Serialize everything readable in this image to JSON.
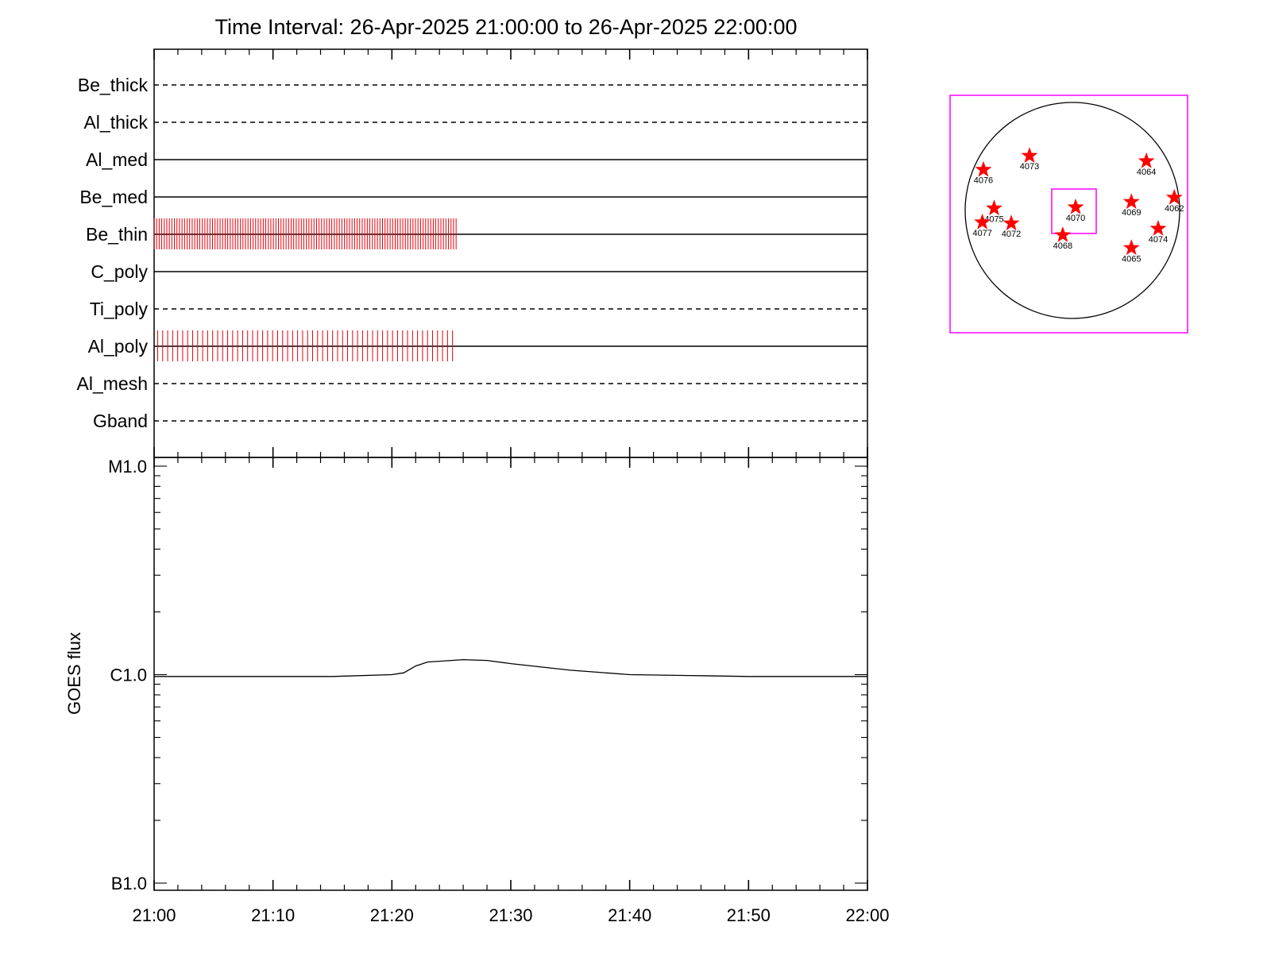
{
  "chart_data": [
    {
      "type": "timeline",
      "title": "Time Interval: 26-Apr-2025 21:00:00 to 26-Apr-2025 22:00:00",
      "x_range": [
        "21:00",
        "22:00"
      ],
      "filters": [
        {
          "name": "Be_thick",
          "style": "dashed",
          "exposures": null
        },
        {
          "name": "Al_thick",
          "style": "dashed",
          "exposures": null
        },
        {
          "name": "Al_med",
          "style": "solid",
          "exposures": null
        },
        {
          "name": "Be_med",
          "style": "solid",
          "exposures": null
        },
        {
          "name": "Be_thin",
          "style": "solid",
          "exposures": {
            "start": "21:00",
            "end": "21:25.4",
            "count": 120
          }
        },
        {
          "name": "C_poly",
          "style": "solid",
          "exposures": null
        },
        {
          "name": "Ti_poly",
          "style": "dashed",
          "exposures": null
        },
        {
          "name": "Al_poly",
          "style": "solid",
          "exposures": {
            "start": "21:00.3",
            "end": "21:25.1",
            "count": 60
          }
        },
        {
          "name": "Al_mesh",
          "style": "dashed",
          "exposures": null
        },
        {
          "name": "Gband",
          "style": "dashed",
          "exposures": null
        }
      ],
      "exposure_color": "#e8000b"
    },
    {
      "type": "line",
      "ylabel": "GOES flux",
      "y_scale": "log",
      "y_ticks": [
        "B1.0",
        "C1.0",
        "M1.0"
      ],
      "ylim": [
        1e-07,
        1e-05
      ],
      "x_ticks": [
        "21:00",
        "21:10",
        "21:20",
        "21:30",
        "21:40",
        "21:50",
        "22:00"
      ],
      "x_range_minutes": [
        0,
        60
      ],
      "series": [
        {
          "x": [
            0,
            5,
            10,
            15,
            20,
            21,
            22,
            23,
            24,
            26,
            28,
            30,
            35,
            40,
            45,
            50,
            55,
            60
          ],
          "y": [
            9.8e-07,
            9.8e-07,
            9.8e-07,
            9.8e-07,
            1e-06,
            1.02e-06,
            1.1e-06,
            1.15e-06,
            1.16e-06,
            1.18e-06,
            1.17e-06,
            1.13e-06,
            1.05e-06,
            1e-06,
            9.9e-07,
            9.8e-07,
            9.8e-07,
            9.8e-07
          ]
        }
      ]
    },
    {
      "type": "scatter",
      "labels": [
        "4076",
        "4073",
        "4064",
        "4062",
        "4075",
        "4077",
        "4072",
        "4070",
        "4069",
        "4068",
        "4074",
        "4065"
      ],
      "points": [
        {
          "label": "4076",
          "x": -0.83,
          "y": 0.38
        },
        {
          "label": "4073",
          "x": -0.4,
          "y": 0.51
        },
        {
          "label": "4064",
          "x": 0.69,
          "y": 0.46
        },
        {
          "label": "4062",
          "x": 0.95,
          "y": 0.12
        },
        {
          "label": "4075",
          "x": -0.73,
          "y": 0.02
        },
        {
          "label": "4077",
          "x": -0.84,
          "y": -0.11
        },
        {
          "label": "4072",
          "x": -0.57,
          "y": -0.12
        },
        {
          "label": "4070",
          "x": 0.03,
          "y": 0.03
        },
        {
          "label": "4069",
          "x": 0.55,
          "y": 0.08
        },
        {
          "label": "4068",
          "x": -0.09,
          "y": -0.23
        },
        {
          "label": "4074",
          "x": 0.8,
          "y": -0.17
        },
        {
          "label": "4065",
          "x": 0.55,
          "y": -0.35
        }
      ],
      "marker_color": "#ff0000",
      "frame_color": "#ff00ff"
    }
  ]
}
